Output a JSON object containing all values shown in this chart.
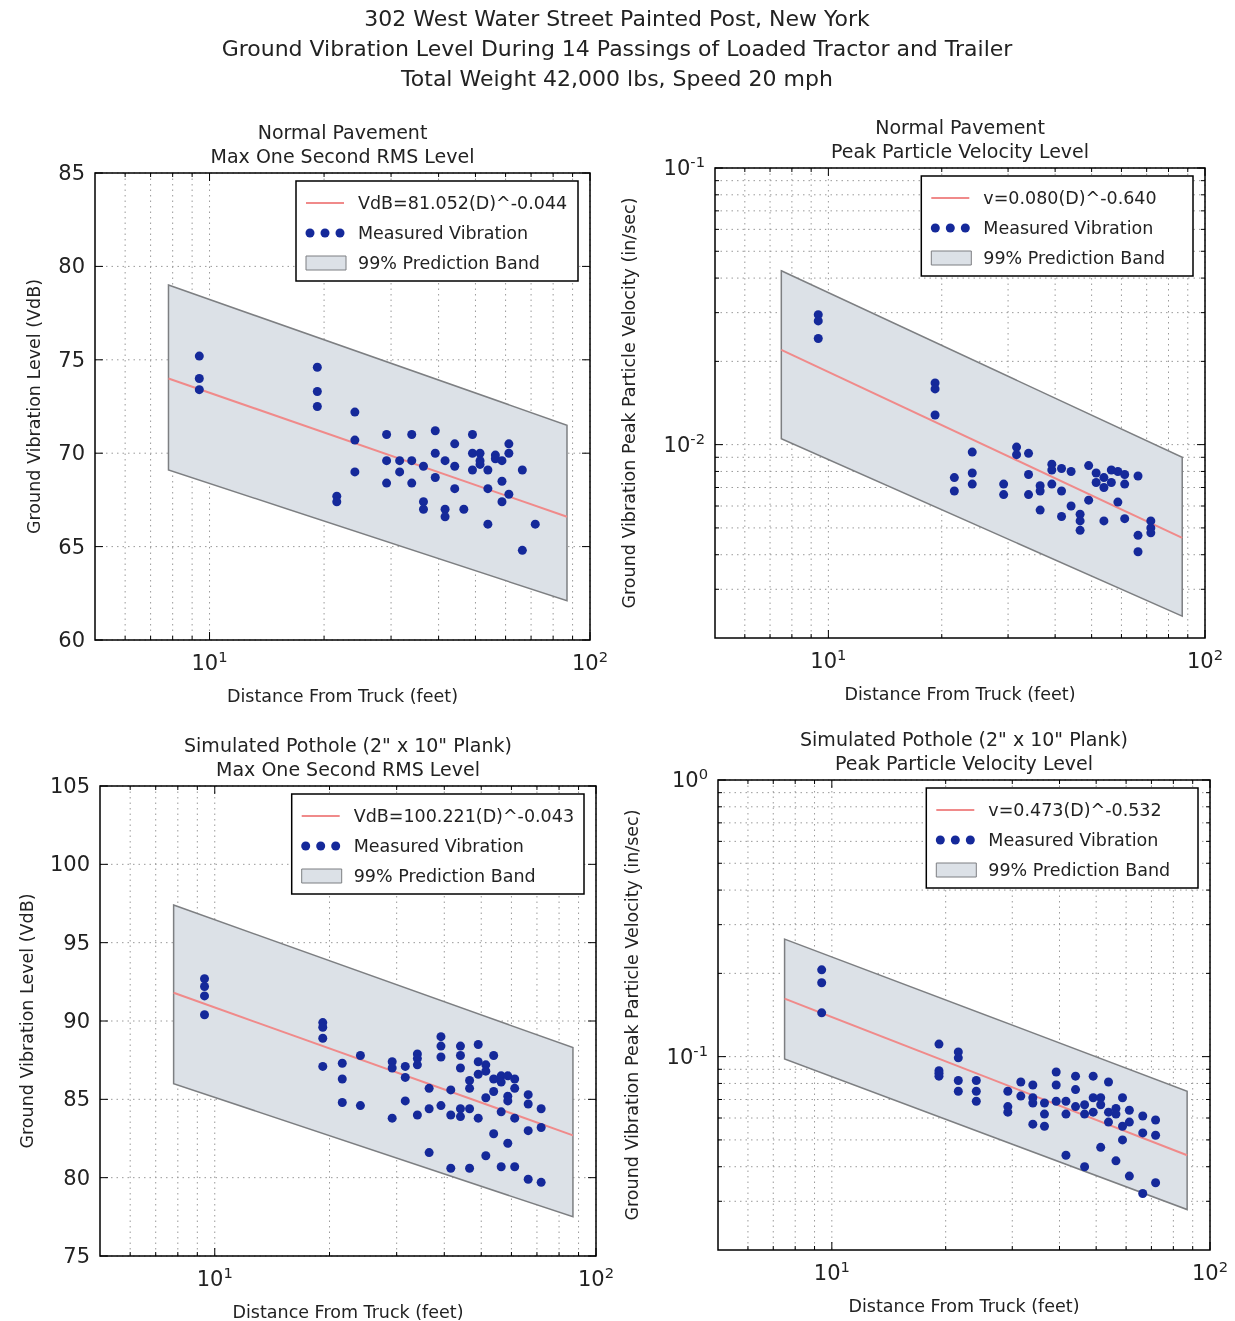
{
  "chart_data": [
    {
      "type": "scatter",
      "title": "Normal Pavement\nMax One Second RMS Level",
      "xlabel": "Distance From Truck (feet)",
      "ylabel": "Ground Vibration Level (VdB)",
      "annotations": [
        "302 West Water Street Painted Post, New York",
        "Ground Vibration Level During 14 Passings of Loaded Tractor and Trailer",
        "Total Weight 42,000 lbs, Speed 20 mph",
        {
          "text": "99% Prediction Band"
        }
      ],
      "log": "x",
      "xlim": [
        5,
        100
      ],
      "ylim": [
        60,
        85
      ],
      "xticks": [
        {
          "value": 6,
          "label": null
        },
        {
          "value": 7,
          "label": null
        },
        {
          "value": 8,
          "label": null
        },
        {
          "value": 9,
          "label": null
        },
        {
          "value": 10,
          "label": "10$^{1}$"
        },
        {
          "value": 20,
          "label": null
        },
        {
          "value": 30,
          "label": null
        },
        {
          "value": 40,
          "label": null
        },
        {
          "value": 50,
          "label": null
        },
        {
          "value": 60,
          "label": null
        },
        {
          "value": 70,
          "label": null
        },
        {
          "value": 80,
          "label": null
        },
        {
          "value": 90,
          "label": null
        },
        {
          "value": 100,
          "label": "10$^{2}$"
        }
      ],
      "yticks": [
        60,
        65,
        70,
        75,
        80,
        85
      ],
      "grid": true,
      "legend": "top right",
      "series": [
        {
          "type": "line",
          "name": "VdB=81.052(D)^-0.044",
          "color": "#f08a8a",
          "x": [
            7.8,
            87
          ],
          "values": [
            74.0,
            66.6
          ],
          "lower": [
            69.1,
            62.1
          ],
          "upper": [
            79.0,
            71.5
          ]
        },
        {
          "type": "scatter",
          "name": "Measured Vibration",
          "color": "#15299a",
          "marker": "circle",
          "x": [
            9.4,
            9.4,
            9.4,
            19.2,
            19.2,
            19.2,
            21.6,
            21.6,
            24.1,
            24.1,
            24.1,
            29.2,
            29.2,
            29.2,
            31.6,
            31.6,
            34.0,
            34.0,
            34.0,
            36.5,
            36.5,
            36.5,
            39.2,
            39.2,
            39.2,
            41.6,
            41.6,
            41.6,
            44.1,
            44.1,
            44.1,
            46.6,
            49.1,
            49.1,
            49.1,
            51.4,
            51.4,
            51.4,
            53.9,
            53.9,
            53.9,
            56.4,
            56.4,
            58.7,
            58.7,
            58.7,
            61.2,
            61.2,
            61.2,
            66.4,
            66.4,
            71.8
          ],
          "values": [
            75.2,
            74.0,
            73.4,
            74.6,
            73.3,
            72.5,
            67.7,
            67.4,
            72.2,
            70.7,
            69.0,
            71.0,
            69.6,
            68.4,
            69.6,
            69.0,
            71.0,
            69.6,
            68.4,
            69.3,
            67.4,
            67.0,
            71.2,
            70.0,
            68.7,
            69.6,
            67.0,
            66.6,
            70.5,
            69.3,
            68.1,
            67.0,
            71.0,
            70.0,
            69.1,
            70.0,
            69.6,
            69.4,
            69.1,
            68.1,
            66.2,
            69.9,
            69.7,
            69.6,
            68.5,
            67.4,
            70.5,
            70.0,
            67.8,
            69.1,
            64.8,
            66.2
          ]
        }
      ]
    },
    {
      "type": "scatter",
      "title": "Normal Pavement\nPeak Particle Velocity Level",
      "annotations": [
        {
          "text": "99% Prediction Band"
        }
      ],
      "xlabel": "Distance From Truck (feet)",
      "ylabel": "Ground Vibration Peak Particle Velocity (in/sec)",
      "log": "xy",
      "xlim": [
        5,
        100
      ],
      "ylim": [
        0.002,
        0.1
      ],
      "xticks": [
        {
          "value": 6,
          "label": null
        },
        {
          "value": 7,
          "label": null
        },
        {
          "value": 8,
          "label": null
        },
        {
          "value": 9,
          "label": null
        },
        {
          "value": 10,
          "label": "10$^{1}$"
        },
        {
          "value": 20,
          "label": null
        },
        {
          "value": 30,
          "label": null
        },
        {
          "value": 40,
          "label": null
        },
        {
          "value": 50,
          "label": null
        },
        {
          "value": 60,
          "label": null
        },
        {
          "value": 70,
          "label": null
        },
        {
          "value": 80,
          "label": null
        },
        {
          "value": 90,
          "label": null
        },
        {
          "value": 100,
          "label": "10$^{2}$"
        }
      ],
      "yticks": [
        {
          "value": 0.003,
          "label": null
        },
        {
          "value": 0.004,
          "label": null
        },
        {
          "value": 0.005,
          "label": null
        },
        {
          "value": 0.006,
          "label": null
        },
        {
          "value": 0.007,
          "label": null
        },
        {
          "value": 0.008,
          "label": null
        },
        {
          "value": 0.009,
          "label": null
        },
        {
          "value": 0.01,
          "label": "10$^{-2}$"
        },
        {
          "value": 0.02,
          "label": null
        },
        {
          "value": 0.03,
          "label": null
        },
        {
          "value": 0.04,
          "label": null
        },
        {
          "value": 0.05,
          "label": null
        },
        {
          "value": 0.06,
          "label": null
        },
        {
          "value": 0.07,
          "label": null
        },
        {
          "value": 0.08,
          "label": null
        },
        {
          "value": 0.09,
          "label": null
        },
        {
          "value": 0.1,
          "label": "10$^{-1}$"
        }
      ],
      "grid": true,
      "legend": "top right",
      "series": [
        {
          "type": "line",
          "name": "v=0.080(D)^-0.640",
          "color": "#f08a8a",
          "x": [
            7.5,
            87
          ],
          "values": [
            0.022,
            0.0046
          ],
          "lower": [
            0.0105,
            0.0024
          ],
          "upper": [
            0.0425,
            0.009
          ]
        },
        {
          "type": "scatter",
          "name": "Measured Vibration",
          "color": "#15299a",
          "marker": "circle",
          "x": [
            9.4,
            9.4,
            9.4,
            19.2,
            19.2,
            19.2,
            21.6,
            21.6,
            24.1,
            24.1,
            24.1,
            29.2,
            29.2,
            31.6,
            31.6,
            34.0,
            34.0,
            34.0,
            36.5,
            36.5,
            36.5,
            39.2,
            39.2,
            39.2,
            41.6,
            41.6,
            41.6,
            44.1,
            44.1,
            46.6,
            46.6,
            46.6,
            49.1,
            49.1,
            51.4,
            51.4,
            53.9,
            53.9,
            53.9,
            56.4,
            56.4,
            58.7,
            58.7,
            61.2,
            61.2,
            61.2,
            66.4,
            66.4,
            66.4,
            71.8,
            71.8,
            71.8
          ],
          "values": [
            0.0295,
            0.028,
            0.0242,
            0.0167,
            0.0159,
            0.0128,
            0.0076,
            0.0068,
            0.0094,
            0.0079,
            0.0072,
            0.0072,
            0.0066,
            0.0098,
            0.0092,
            0.0093,
            0.0078,
            0.0066,
            0.0071,
            0.0068,
            0.0058,
            0.0085,
            0.0081,
            0.0072,
            0.0082,
            0.0068,
            0.0055,
            0.008,
            0.006,
            0.0056,
            0.0053,
            0.0049,
            0.0084,
            0.0063,
            0.0079,
            0.0073,
            0.0076,
            0.007,
            0.0053,
            0.0081,
            0.0073,
            0.008,
            0.0062,
            0.0078,
            0.0072,
            0.0054,
            0.0077,
            0.0047,
            0.0041,
            0.0053,
            0.005,
            0.0048
          ]
        }
      ]
    },
    {
      "type": "scatter",
      "title": "Simulated Pothole (2\" x 10\" Plank)\nMax One Second RMS Level",
      "annotations": [
        {
          "text": "99% Prediction Band"
        }
      ],
      "xlabel": "Distance From Truck (feet)",
      "ylabel": "Ground Vibration Level (VdB)",
      "log": "x",
      "xlim": [
        5,
        100
      ],
      "ylim": [
        75,
        105
      ],
      "xticks": [
        {
          "value": 6,
          "label": null
        },
        {
          "value": 7,
          "label": null
        },
        {
          "value": 8,
          "label": null
        },
        {
          "value": 9,
          "label": null
        },
        {
          "value": 10,
          "label": "10$^{1}$"
        },
        {
          "value": 20,
          "label": null
        },
        {
          "value": 30,
          "label": null
        },
        {
          "value": 40,
          "label": null
        },
        {
          "value": 50,
          "label": null
        },
        {
          "value": 60,
          "label": null
        },
        {
          "value": 70,
          "label": null
        },
        {
          "value": 80,
          "label": null
        },
        {
          "value": 90,
          "label": null
        },
        {
          "value": 100,
          "label": "10$^{2}$"
        }
      ],
      "yticks": [
        75,
        80,
        85,
        90,
        95,
        100,
        105
      ],
      "grid": true,
      "legend": "top right",
      "series": [
        {
          "type": "line",
          "name": "VdB=100.221(D)^-0.043",
          "color": "#f08a8a",
          "x": [
            7.8,
            87
          ],
          "values": [
            91.8,
            82.7
          ],
          "lower": [
            86.0,
            77.5
          ],
          "upper": [
            97.4,
            88.3
          ]
        },
        {
          "type": "scatter",
          "name": "Measured Vibration",
          "color": "#15299a",
          "marker": "circle",
          "x": [
            9.4,
            9.4,
            9.4,
            9.4,
            19.2,
            19.2,
            19.2,
            19.2,
            21.6,
            21.6,
            21.6,
            24.1,
            24.1,
            29.2,
            29.2,
            29.2,
            31.6,
            31.6,
            31.6,
            34.0,
            34.0,
            34.0,
            34.0,
            36.5,
            36.5,
            36.5,
            39.2,
            39.2,
            39.2,
            39.2,
            41.6,
            41.6,
            41.6,
            44.1,
            44.1,
            44.1,
            44.1,
            44.1,
            46.6,
            46.6,
            46.6,
            46.6,
            49.1,
            49.1,
            49.1,
            49.1,
            51.4,
            51.4,
            51.4,
            51.4,
            53.9,
            53.9,
            53.9,
            53.9,
            56.4,
            56.4,
            56.4,
            56.4,
            58.7,
            58.7,
            58.7,
            58.7,
            61.2,
            61.2,
            61.2,
            61.2,
            66.4,
            66.4,
            66.4,
            66.4,
            71.8,
            71.8,
            71.8
          ],
          "values": [
            92.7,
            92.2,
            91.6,
            90.4,
            89.9,
            89.6,
            88.9,
            87.1,
            87.3,
            86.3,
            84.8,
            87.8,
            84.6,
            87.4,
            87.0,
            83.8,
            87.1,
            86.4,
            84.9,
            87.9,
            87.6,
            87.2,
            84.0,
            85.7,
            84.4,
            81.6,
            89.0,
            88.4,
            87.7,
            84.6,
            85.6,
            84.0,
            80.6,
            88.4,
            87.8,
            87.0,
            84.4,
            83.9,
            86.2,
            85.7,
            84.4,
            80.6,
            88.5,
            87.4,
            86.6,
            83.8,
            87.2,
            86.8,
            85.1,
            81.4,
            87.8,
            86.3,
            85.5,
            82.8,
            86.5,
            86.1,
            84.2,
            80.7,
            86.5,
            85.2,
            84.9,
            82.2,
            86.3,
            85.7,
            83.8,
            80.7,
            85.3,
            84.7,
            83.0,
            79.9,
            84.4,
            83.2,
            79.7
          ]
        }
      ]
    },
    {
      "type": "scatter",
      "title": "Simulated Pothole (2\" x 10\" Plank)\nPeak Particle Velocity Level",
      "annotations": [
        {
          "text": "99% Prediction Band"
        }
      ],
      "xlabel": "Distance From Truck (feet)",
      "ylabel": "Ground Vibration Peak Particle Velocity (in/sec)",
      "log": "xy",
      "xlim": [
        5,
        100
      ],
      "ylim": [
        0.02,
        1
      ],
      "xticks": [
        {
          "value": 6,
          "label": null
        },
        {
          "value": 7,
          "label": null
        },
        {
          "value": 8,
          "label": null
        },
        {
          "value": 9,
          "label": null
        },
        {
          "value": 10,
          "label": "10$^{1}$"
        },
        {
          "value": 20,
          "label": null
        },
        {
          "value": 30,
          "label": null
        },
        {
          "value": 40,
          "label": null
        },
        {
          "value": 50,
          "label": null
        },
        {
          "value": 60,
          "label": null
        },
        {
          "value": 70,
          "label": null
        },
        {
          "value": 80,
          "label": null
        },
        {
          "value": 90,
          "label": null
        },
        {
          "value": 100,
          "label": "10$^{2}$"
        }
      ],
      "yticks": [
        {
          "value": 0.03,
          "label": null
        },
        {
          "value": 0.04,
          "label": null
        },
        {
          "value": 0.05,
          "label": null
        },
        {
          "value": 0.06,
          "label": null
        },
        {
          "value": 0.07,
          "label": null
        },
        {
          "value": 0.08,
          "label": null
        },
        {
          "value": 0.09,
          "label": null
        },
        {
          "value": 0.1,
          "label": "10$^{-1}$"
        },
        {
          "value": 0.2,
          "label": null
        },
        {
          "value": 0.3,
          "label": null
        },
        {
          "value": 0.4,
          "label": null
        },
        {
          "value": 0.5,
          "label": null
        },
        {
          "value": 0.6,
          "label": null
        },
        {
          "value": 0.7,
          "label": null
        },
        {
          "value": 0.8,
          "label": null
        },
        {
          "value": 0.9,
          "label": null
        },
        {
          "value": 1,
          "label": "10$^{0}$"
        }
      ],
      "grid": true,
      "legend": "top right",
      "series": [
        {
          "type": "line",
          "name": "v=0.473(D)^-0.532",
          "color": "#f08a8a",
          "x": [
            7.5,
            87
          ],
          "values": [
            0.162,
            0.044
          ],
          "lower": [
            0.098,
            0.028
          ],
          "upper": [
            0.266,
            0.075
          ]
        },
        {
          "type": "scatter",
          "name": "Measured Vibration",
          "color": "#15299a",
          "marker": "circle",
          "x": [
            9.4,
            9.4,
            9.4,
            19.2,
            19.2,
            19.2,
            19.2,
            21.6,
            21.6,
            21.6,
            21.6,
            24.1,
            24.1,
            24.1,
            29.2,
            29.2,
            29.2,
            31.6,
            31.6,
            34.0,
            34.0,
            34.0,
            34.0,
            36.5,
            36.5,
            36.5,
            39.2,
            39.2,
            39.2,
            41.6,
            41.6,
            41.6,
            44.1,
            44.1,
            44.1,
            46.6,
            46.6,
            46.6,
            49.1,
            49.1,
            49.1,
            51.4,
            51.4,
            51.4,
            53.9,
            53.9,
            53.9,
            56.4,
            56.4,
            56.4,
            58.7,
            58.7,
            58.7,
            61.2,
            61.2,
            61.2,
            66.4,
            66.4,
            66.4,
            71.8,
            71.8,
            71.8
          ],
          "values": [
            0.206,
            0.185,
            0.144,
            0.111,
            0.089,
            0.087,
            0.085,
            0.104,
            0.099,
            0.082,
            0.075,
            0.082,
            0.075,
            0.069,
            0.075,
            0.066,
            0.063,
            0.081,
            0.072,
            0.079,
            0.071,
            0.068,
            0.057,
            0.068,
            0.062,
            0.056,
            0.088,
            0.079,
            0.069,
            0.069,
            0.062,
            0.044,
            0.085,
            0.076,
            0.066,
            0.067,
            0.062,
            0.04,
            0.085,
            0.071,
            0.063,
            0.071,
            0.067,
            0.047,
            0.081,
            0.063,
            0.058,
            0.065,
            0.062,
            0.042,
            0.071,
            0.056,
            0.05,
            0.064,
            0.058,
            0.037,
            0.061,
            0.053,
            0.032,
            0.059,
            0.052,
            0.035
          ]
        }
      ]
    }
  ]
}
